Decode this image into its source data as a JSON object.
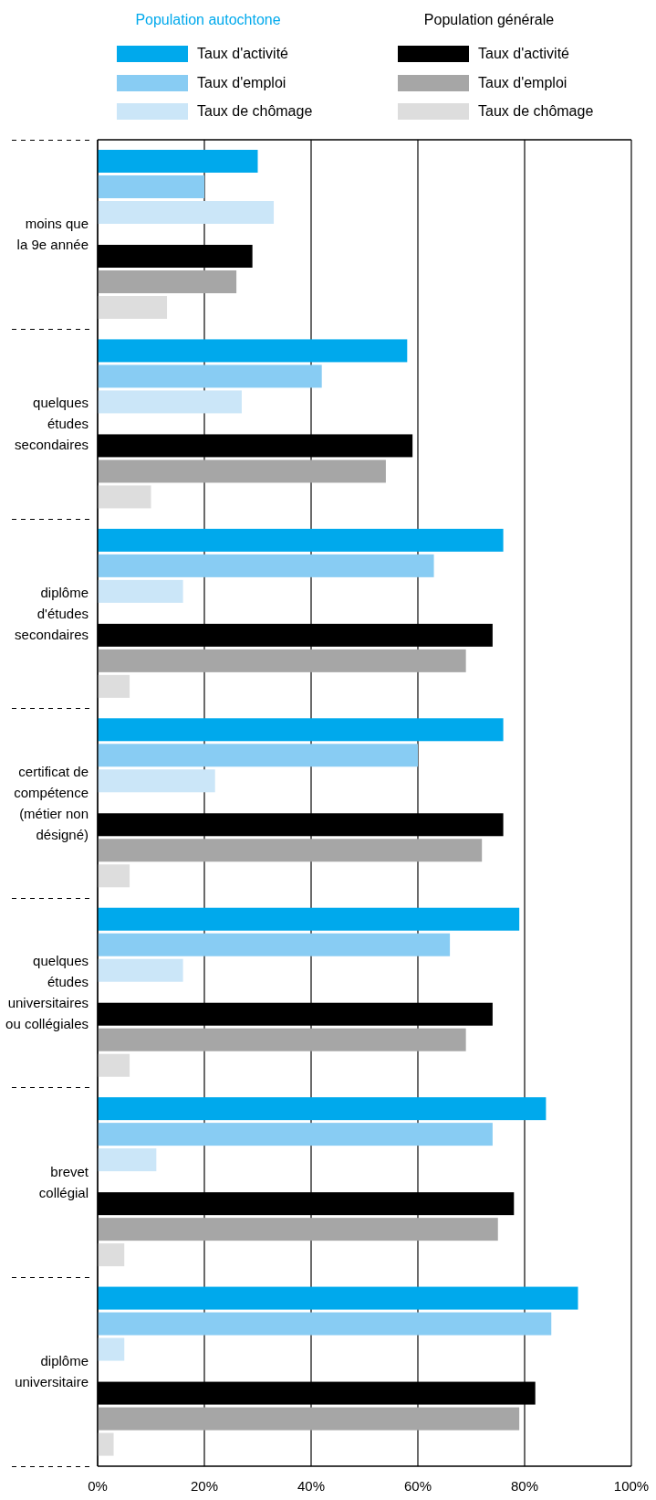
{
  "chart_data": {
    "type": "bar",
    "orientation": "horizontal",
    "annotations": [
      "Population autochtone",
      "Population générale"
    ],
    "categories": [
      "moins que la 9e année",
      "quelques études secondaires",
      "diplôme d'études secondaires",
      "certificat de compétence (métier non désigné)",
      "quelques études universitaires ou collégiales",
      "brevet collégial",
      "diplôme universitaire"
    ],
    "series": [
      {
        "name": "Taux d'activité",
        "color": "#00a9ec",
        "values": [
          30,
          58,
          76,
          76,
          79,
          84,
          90
        ]
      },
      {
        "name": "Taux d'emploi",
        "color": "#88ccf3",
        "values": [
          20,
          42,
          63,
          60,
          66,
          74,
          85
        ]
      },
      {
        "name": "Taux de chômage",
        "color": "#cbe6f8",
        "values": [
          33,
          27,
          16,
          22,
          16,
          11,
          5
        ]
      },
      {
        "name": "Taux d'activité",
        "color": "#000000",
        "values": [
          29,
          59,
          74,
          76,
          74,
          78,
          82
        ]
      },
      {
        "name": "Taux d'emploi",
        "color": "#a6a6a6",
        "values": [
          26,
          54,
          69,
          72,
          69,
          75,
          79
        ]
      },
      {
        "name": "Taux de chômage",
        "color": "#dddddd",
        "values": [
          13,
          10,
          6,
          6,
          6,
          5,
          3
        ]
      }
    ],
    "xlim": [
      0,
      100
    ],
    "xticks": [
      {
        "value": 0,
        "label": "0%"
      },
      {
        "value": 20,
        "label": "20%"
      },
      {
        "value": 40,
        "label": "40%"
      },
      {
        "value": 60,
        "label": "60%"
      },
      {
        "value": 80,
        "label": "80%"
      },
      {
        "value": 100,
        "label": "100%"
      }
    ],
    "grid": "x",
    "legend": "top"
  }
}
